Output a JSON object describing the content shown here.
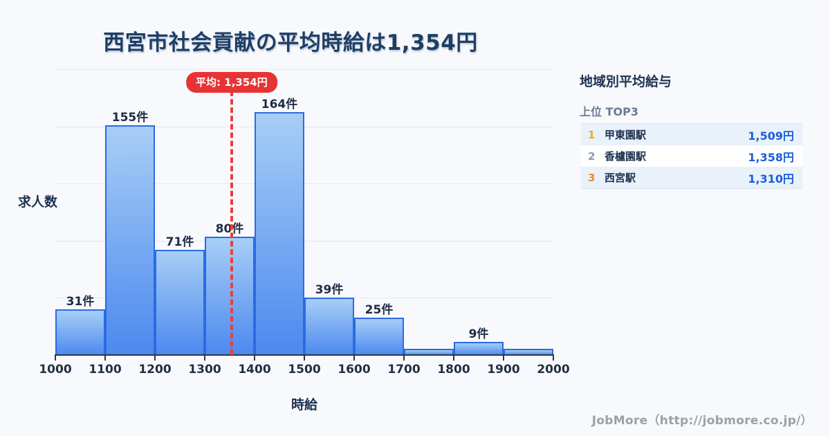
{
  "title": "西宮市社会貢献の平均時給は1,354円",
  "average_label": "平均: 1,354円",
  "chart_data": {
    "type": "bar",
    "title": "西宮市社会貢献の平均時給は1,354円",
    "xlabel": "時給",
    "ylabel": "求人数",
    "xlim": [
      1000,
      2000
    ],
    "grid": true,
    "bin_edges": [
      1000,
      1100,
      1200,
      1300,
      1400,
      1500,
      1600,
      1700,
      1800,
      1900,
      2000
    ],
    "categories": [
      "1000-1100",
      "1100-1200",
      "1200-1300",
      "1300-1400",
      "1400-1500",
      "1500-1600",
      "1600-1700",
      "1700-1800",
      "1800-1900",
      "1900-2000"
    ],
    "values": [
      31,
      155,
      71,
      80,
      164,
      39,
      25,
      4,
      9,
      4
    ],
    "bar_labels": [
      "31件",
      "155件",
      "71件",
      "80件",
      "164件",
      "39件",
      "25件",
      "",
      "9件",
      ""
    ],
    "x_tick_labels": [
      "1000",
      "1100",
      "1200",
      "1300",
      "1400",
      "1500",
      "1600",
      "1700",
      "1800",
      "1900",
      "2000"
    ],
    "average_value": 1354,
    "average_annotation": "平均: 1,354円"
  },
  "side_panel": {
    "heading": "地域別平均給与",
    "subheading": "上位 TOP3",
    "rows": [
      {
        "rank": "1",
        "station": "甲東園駅",
        "value": "1,509円"
      },
      {
        "rank": "2",
        "station": "香櫨園駅",
        "value": "1,358円"
      },
      {
        "rank": "3",
        "station": "西宮駅",
        "value": "1,310円"
      }
    ]
  },
  "footer": "JobMore（http://jobmore.co.jp/）",
  "colors": {
    "background": "#f8f9fc",
    "title_text": "#1d3f66",
    "bar_gradient_top": "#a7cef6",
    "bar_gradient_bottom": "#4c89ef",
    "bar_border": "#2a6be4",
    "gridline": "#e3e8f1",
    "axis": "#2e3642",
    "average_red": "#e83335",
    "rank1": "#f0a81c",
    "rank2": "#8e9aab",
    "rank3": "#ea8c2e",
    "value_blue": "#1b5fd9",
    "row_alt_bg": "#e9f1fb",
    "footer_gray": "#9b9fa7"
  }
}
